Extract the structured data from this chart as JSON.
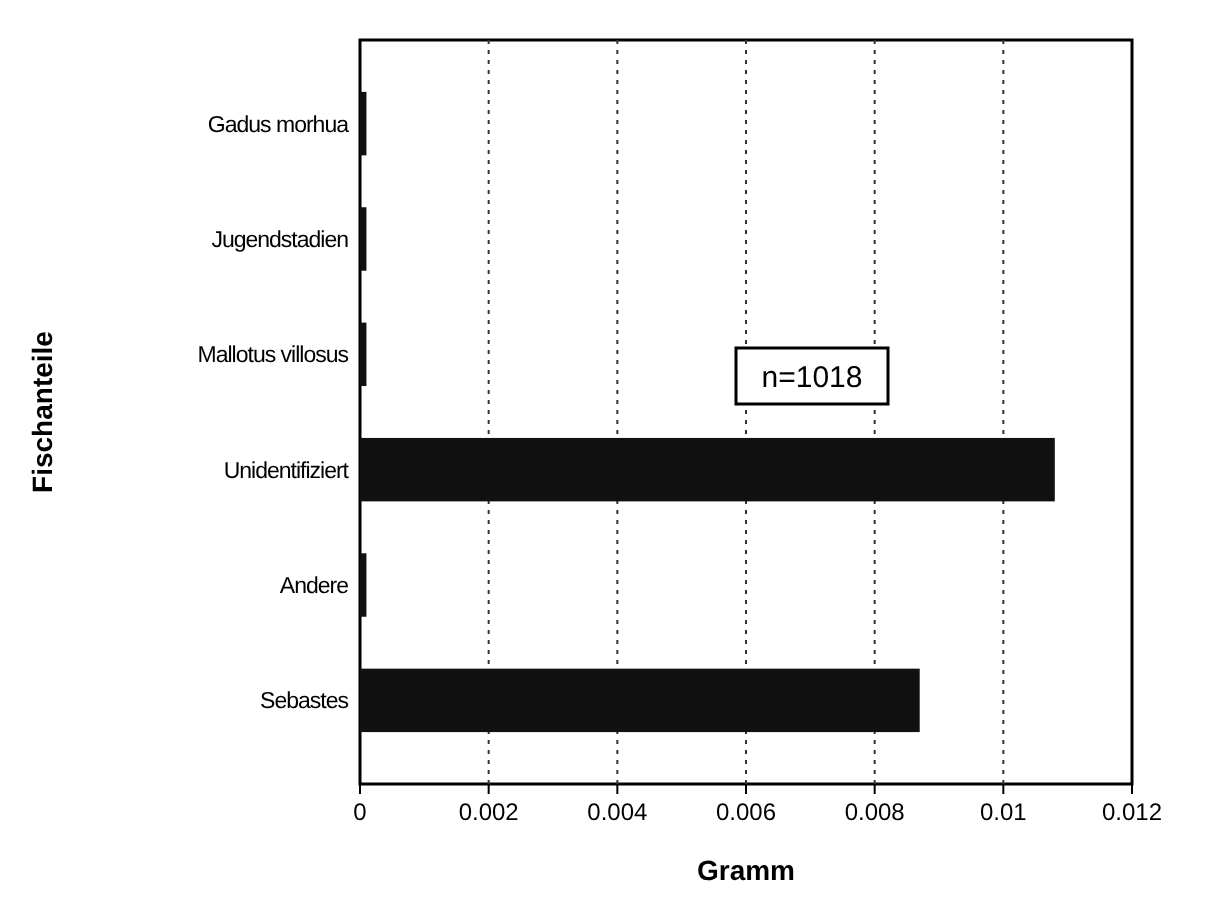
{
  "chart_data": {
    "type": "bar",
    "orientation": "horizontal",
    "xlabel": "Gramm",
    "ylabel": "Fischanteile",
    "categories": [
      "Gadus morhua",
      "Jugendstadien",
      "Mallotus villosus",
      "Unidentifiziert",
      "Andere",
      "Sebastes"
    ],
    "values": [
      0.0001,
      0.0001,
      0.0001,
      0.0108,
      0.0001,
      0.0087
    ],
    "color": "#111111",
    "xlim": [
      0,
      0.012
    ],
    "xticks": [
      0,
      0.002,
      0.004,
      0.006,
      0.008,
      {
        "value": 0.01,
        "label": "0.01"
      },
      0.012
    ],
    "grid": "x",
    "annotations": [
      "n=1018"
    ]
  }
}
